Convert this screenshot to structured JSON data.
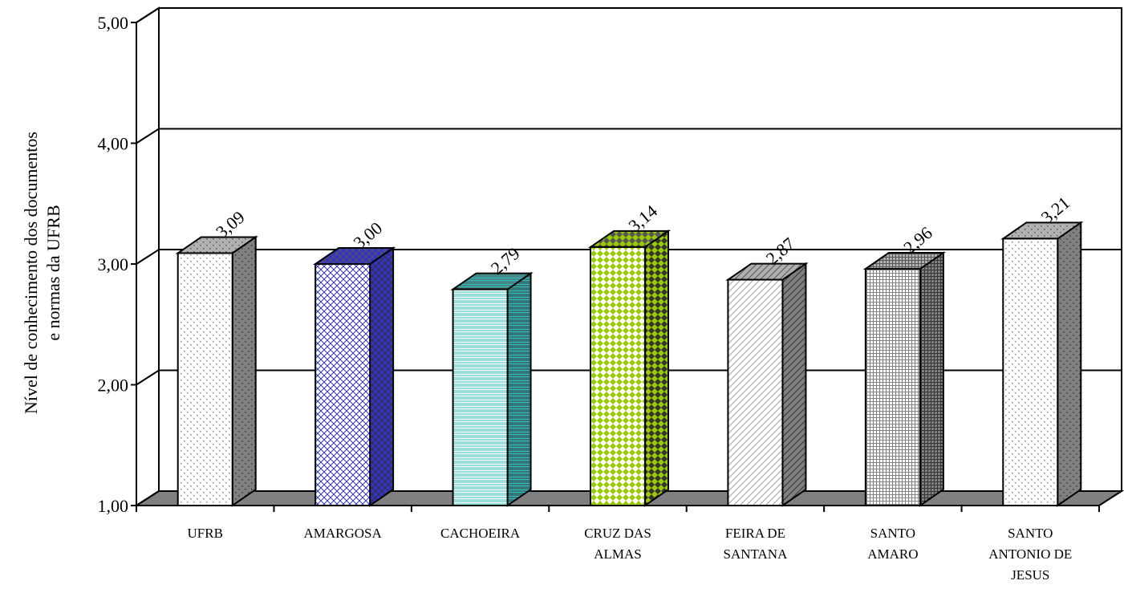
{
  "chart_data": {
    "type": "bar3d",
    "y_label": [
      "Nível de conhecimento dos documentos",
      "e normas da UFRB"
    ],
    "categories": [
      "UFRB",
      "AMARGOSA",
      "CACHOEIRA",
      "CRUZ DAS\nALMAS",
      "FEIRA DE\nSANTANA",
      "SANTO\nAMARO",
      "SANTO\nANTONIO DE\nJESUS"
    ],
    "values": [
      3.09,
      3.0,
      2.79,
      3.14,
      2.87,
      2.96,
      3.21
    ],
    "value_labels": [
      "3,09",
      "3,00",
      "2,79",
      "3,14",
      "2,87",
      "2,96",
      "3,21"
    ],
    "colors": [
      "#808080",
      "#3333cc",
      "#33bbbb",
      "#99cc00",
      "#a0a0a0",
      "#808080",
      "#808080"
    ],
    "patterns": [
      "dots",
      "crosshatch",
      "hlines",
      "diamonds",
      "diagonal",
      "grid",
      "dots"
    ],
    "ylim": [
      1,
      5
    ],
    "yticks": [
      {
        "value": 1,
        "label": "1,00"
      },
      {
        "value": 2,
        "label": "2,00"
      },
      {
        "value": 3,
        "label": "3,00"
      },
      {
        "value": 4,
        "label": "4,00"
      },
      {
        "value": 5,
        "label": "5,00"
      }
    ],
    "grid": true
  }
}
